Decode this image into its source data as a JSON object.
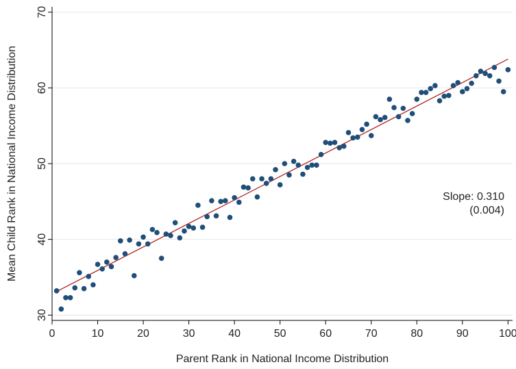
{
  "chart_data": {
    "type": "scatter",
    "title": "",
    "xlabel": "Parent Rank in National Income Distribution",
    "ylabel": "Mean Child Rank in National Income Distribution",
    "xlim": [
      0,
      101
    ],
    "ylim": [
      29.3,
      70.7
    ],
    "xticks": [
      0,
      10,
      20,
      30,
      40,
      50,
      60,
      70,
      80,
      90,
      100
    ],
    "yticks": [
      30,
      40,
      50,
      60,
      70
    ],
    "grid": "horizontal",
    "legend": "none",
    "colors": {
      "points": "#1f4e79",
      "fit_line": "#b22222",
      "grid": "#e6e6e6"
    },
    "annotation": {
      "line1": "Slope: 0.310",
      "line2": "(0.004)"
    },
    "fit_line": {
      "intercept": 32.8,
      "slope": 0.31,
      "x_range": [
        1,
        100
      ]
    },
    "x": [
      1,
      2,
      3,
      4,
      5,
      6,
      7,
      8,
      9,
      10,
      11,
      12,
      13,
      14,
      15,
      16,
      17,
      18,
      19,
      20,
      21,
      22,
      23,
      24,
      25,
      26,
      27,
      28,
      29,
      30,
      31,
      32,
      33,
      34,
      35,
      36,
      37,
      38,
      39,
      40,
      41,
      42,
      43,
      44,
      45,
      46,
      47,
      48,
      49,
      50,
      51,
      52,
      53,
      54,
      55,
      56,
      57,
      58,
      59,
      60,
      61,
      62,
      63,
      64,
      65,
      66,
      67,
      68,
      69,
      70,
      71,
      72,
      73,
      74,
      75,
      76,
      77,
      78,
      79,
      80,
      81,
      82,
      83,
      84,
      85,
      86,
      87,
      88,
      89,
      90,
      91,
      92,
      93,
      94,
      95,
      96,
      97,
      98,
      99,
      100
    ],
    "y": [
      33.2,
      30.8,
      32.3,
      32.3,
      33.6,
      35.6,
      33.5,
      35.1,
      34.0,
      36.7,
      36.1,
      37.0,
      36.4,
      37.6,
      39.8,
      38.1,
      39.9,
      35.2,
      39.4,
      40.3,
      39.4,
      41.3,
      40.9,
      37.5,
      40.7,
      40.5,
      42.2,
      40.2,
      41.1,
      41.7,
      41.5,
      44.5,
      41.6,
      43.0,
      45.1,
      43.1,
      45.0,
      45.1,
      42.9,
      45.5,
      44.9,
      46.9,
      46.8,
      48.0,
      45.6,
      48.0,
      47.4,
      48.0,
      49.2,
      47.2,
      50.0,
      48.5,
      50.3,
      49.8,
      48.6,
      49.5,
      49.8,
      49.8,
      51.2,
      52.8,
      52.7,
      52.8,
      52.1,
      52.3,
      54.1,
      53.4,
      53.5,
      54.5,
      55.2,
      53.7,
      56.2,
      55.8,
      56.1,
      58.5,
      57.4,
      56.2,
      57.3,
      55.7,
      56.6,
      58.5,
      59.4,
      59.4,
      59.9,
      60.3,
      58.3,
      58.9,
      59.0,
      60.3,
      60.7,
      59.5,
      59.9,
      60.6,
      61.6,
      62.2,
      61.9,
      61.6,
      62.7,
      60.9,
      59.5,
      62.4
    ]
  }
}
